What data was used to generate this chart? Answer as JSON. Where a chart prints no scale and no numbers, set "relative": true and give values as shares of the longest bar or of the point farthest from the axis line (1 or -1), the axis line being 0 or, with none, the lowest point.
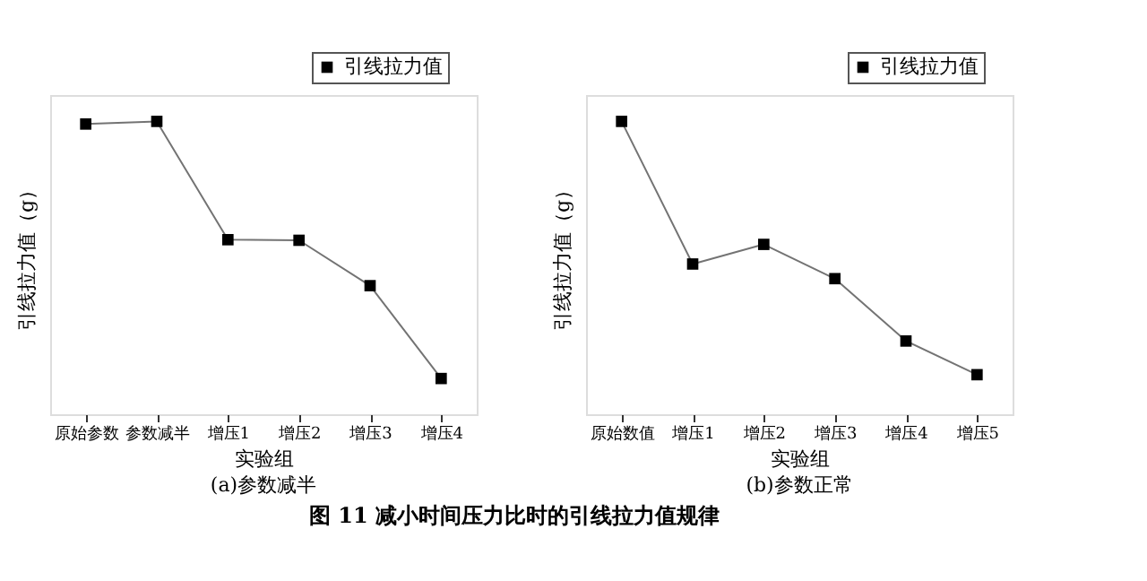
{
  "chart_data": [
    {
      "type": "line",
      "title": "(a)参数减半",
      "xlabel": "实验组",
      "ylabel": "引线拉力值（g）",
      "relative": true,
      "categories": [
        "原始参数",
        "参数减半",
        "增压1",
        "增压2",
        "增压3",
        "增压4"
      ],
      "series": [
        {
          "name": "引线拉力值",
          "color": "#000000",
          "values": [
            0.991,
            1,
            0.596,
            0.594,
            0.439,
            0.122
          ]
        }
      ],
      "marker": "square",
      "line_style": "solid",
      "grid": false,
      "legend": "top right"
    },
    {
      "type": "line",
      "title": "(b)参数正常",
      "xlabel": "实验组",
      "ylabel": "引线拉力值（g）",
      "relative": true,
      "categories": [
        "原始数值",
        "增压1",
        "增压2",
        "增压3",
        "增压4",
        "增压5"
      ],
      "series": [
        {
          "name": "引线拉力值",
          "color": "#000000",
          "values": [
            1,
            0.513,
            0.58,
            0.463,
            0.25,
            0.135
          ]
        }
      ],
      "marker": "square",
      "line_style": "solid",
      "grid": false,
      "legend": "top right",
      "annotations": [
        "图 11  减小时间压力比时的引线拉力值规律"
      ]
    }
  ]
}
